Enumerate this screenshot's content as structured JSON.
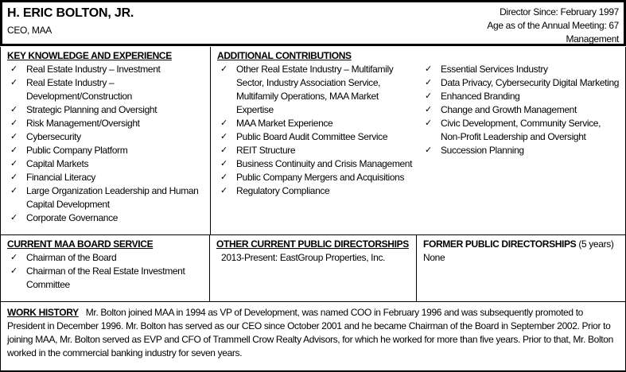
{
  "header": {
    "name": "H. ERIC BOLTON, JR.",
    "title": "CEO, MAA",
    "director_since": "Director Since:  February 1997",
    "age": "Age as of the Annual Meeting:  67",
    "category": "Management"
  },
  "key_knowledge": {
    "heading": "KEY KNOWLEDGE AND EXPERIENCE",
    "items": [
      "Real Estate Industry – Investment",
      "Real Estate Industry – Development/Construction",
      "Strategic Planning and Oversight",
      "Risk Management/Oversight",
      "Cybersecurity",
      "Public Company Platform",
      "Capital Markets",
      "Financial Literacy",
      "Large Organization Leadership and Human Capital Development",
      "Corporate Governance"
    ]
  },
  "additional": {
    "heading": "ADDITIONAL CONTRIBUTIONS",
    "col1": [
      "Other Real Estate Industry – Multifamily Sector, Industry Association Service, Multifamily Operations, MAA Market Expertise",
      "MAA Market Experience",
      "Public Board Audit Committee Service",
      "REIT Structure",
      "Business Continuity and Crisis Management",
      "Public Company Mergers and Acquisitions",
      "Regulatory Compliance"
    ],
    "col2": [
      "Essential Services Industry",
      "Data Privacy, Cybersecurity Digital Marketing",
      "Enhanced Branding",
      "Change and Growth Management",
      "Civic Development, Community Service, Non-Profit Leadership and Oversight",
      "Succession Planning"
    ]
  },
  "board_service": {
    "heading": "CURRENT MAA BOARD SERVICE",
    "items": [
      "Chairman of the Board",
      "Chairman of the Real Estate Investment Committee"
    ]
  },
  "other_directorships": {
    "heading": "OTHER CURRENT PUBLIC DIRECTORSHIPS",
    "value": "2013-Present: EastGroup Properties, Inc."
  },
  "former_directorships": {
    "heading": "FORMER PUBLIC DIRECTORSHIPS",
    "heading_suffix": " (5 years)",
    "value": "None"
  },
  "work_history": {
    "heading": "WORK HISTORY",
    "text": "Mr. Bolton joined MAA in 1994 as VP of Development, was named COO in February 1996 and was subsequently promoted to President in December 1996. Mr. Bolton has served as our CEO since October 2001 and he became Chairman of the Board in September 2002. Prior to joining MAA, Mr. Bolton served as EVP and CFO of Trammell Crow Realty Advisors, for which he worked for more than five years. Prior to that, Mr. Bolton worked in the commercial banking industry for seven years."
  },
  "check_glyph": "✓"
}
